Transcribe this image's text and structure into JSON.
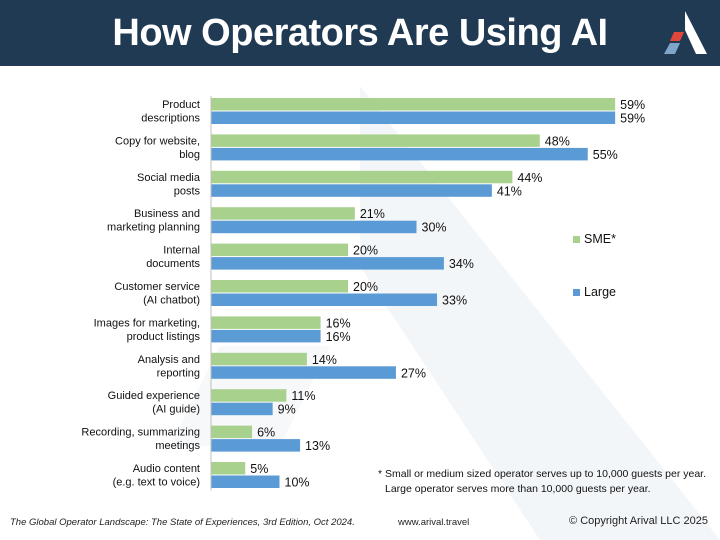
{
  "header": {
    "title": "How Operators Are Using AI",
    "logo_icon": "arival-triangle-logo-icon"
  },
  "colors": {
    "header_bg": "#1f3a52",
    "sme": "#a9d18e",
    "large": "#5b9bd5",
    "logo_red": "#e0473a",
    "logo_blue": "#7fa6c9"
  },
  "chart_data": {
    "type": "bar",
    "orientation": "horizontal",
    "categories": [
      "Product descriptions",
      "Copy for website, blog",
      "Social media posts",
      "Business and marketing planning",
      "Internal documents",
      "Customer service (AI chatbot)",
      "Images for marketing, product listings",
      "Analysis and reporting",
      "Guided experience (AI guide)",
      "Recording, summarizing meetings",
      "Audio content (e.g. text to voice)"
    ],
    "category_lines": [
      [
        "Product",
        "descriptions"
      ],
      [
        "Copy for website,",
        "blog"
      ],
      [
        "Social media",
        "posts"
      ],
      [
        "Business and",
        "marketing planning"
      ],
      [
        "Internal",
        "documents"
      ],
      [
        "Customer service",
        "(AI chatbot)"
      ],
      [
        "Images for marketing,",
        "product listings"
      ],
      [
        "Analysis and",
        "reporting"
      ],
      [
        "Guided experience",
        "(AI guide)"
      ],
      [
        "Recording, summarizing",
        "meetings"
      ],
      [
        "Audio content",
        "(e.g. text to voice)"
      ]
    ],
    "series": [
      {
        "name": "SME*",
        "values": [
          59,
          48,
          44,
          21,
          20,
          20,
          16,
          14,
          11,
          6,
          5
        ]
      },
      {
        "name": "Large",
        "values": [
          59,
          55,
          41,
          30,
          34,
          33,
          16,
          27,
          9,
          13,
          10
        ]
      }
    ],
    "value_suffix": "%",
    "xlim": [
      0,
      60
    ],
    "grid": false,
    "legend_position": "right"
  },
  "footnote": {
    "line1": "* Small or medium sized operator serves up to 10,000 guests per year.",
    "line2": "Large operator serves more than 10,000 guests per year."
  },
  "footer": {
    "source": "The Global Operator Landscape: The State of Experiences, 3rd Edition, Oct 2024.",
    "url": "www.arival.travel",
    "copyright": "© Copyright Arival LLC 2025"
  }
}
